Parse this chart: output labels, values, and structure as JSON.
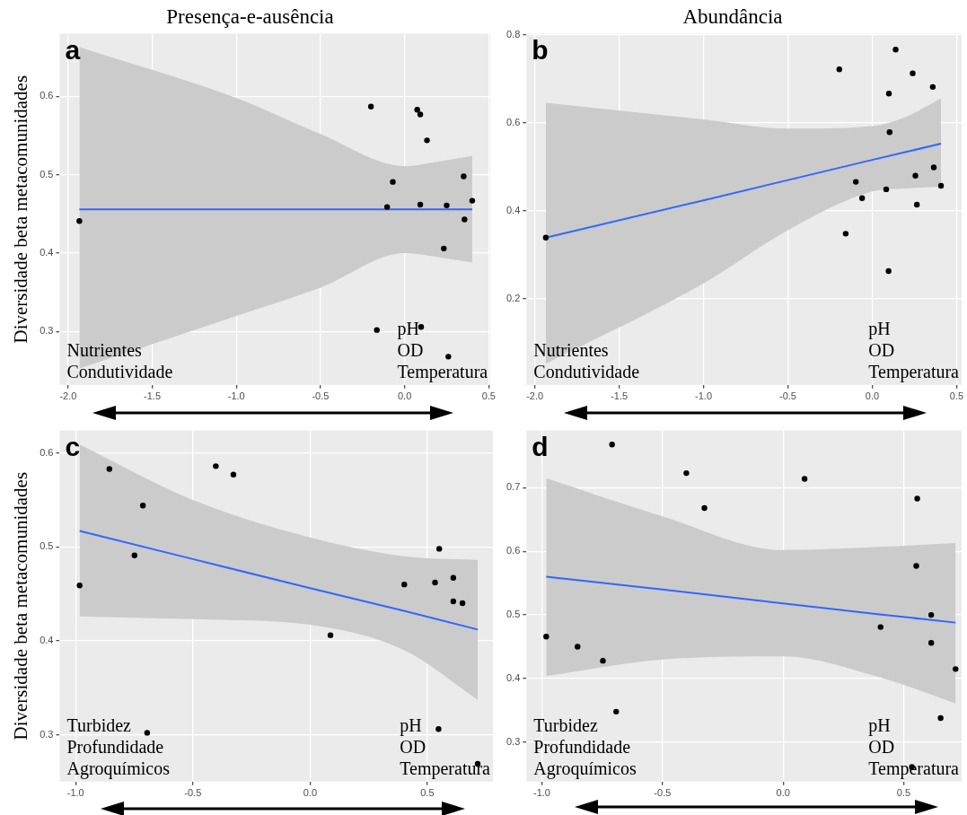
{
  "chart_data": [
    {
      "type": "scatter",
      "title": "Presença-e-ausência",
      "ylabel": "Diversidade beta metacomunidades",
      "annotations": [
        "a",
        "Nutrientes\nCondutividade",
        "pH\nOD\nTemperatura"
      ],
      "xlim": [
        -2.05,
        0.51
      ],
      "ylim": [
        0.232,
        0.68
      ],
      "xticks": [
        {
          "value": -2,
          "label": "-2.0"
        },
        -1.5,
        {
          "value": -1,
          "label": "-1.0"
        },
        -0.5,
        {
          "value": 0,
          "label": "0.0"
        },
        0.5
      ],
      "yticks": [
        0.3,
        0.4,
        0.5,
        0.6
      ],
      "grid": true,
      "series": [
        {
          "marker": "circle",
          "color": "#000000",
          "x": [
            -1.933,
            -0.2,
            0.075,
            0.093,
            0.133,
            -0.07,
            -0.104,
            0.093,
            0.25,
            0.351,
            0.402,
            0.356,
            0.233,
            -0.165,
            0.098,
            0.26
          ],
          "values": [
            0.441,
            0.587,
            0.583,
            0.577,
            0.544,
            0.491,
            0.459,
            0.462,
            0.461,
            0.498,
            0.467,
            0.443,
            0.406,
            0.302,
            0.306,
            0.268
          ]
        },
        {
          "type": "line",
          "marker": "none",
          "color": "#3366ff",
          "x": [
            -1.933,
            -1,
            -0.5,
            0,
            0.2,
            0.402
          ],
          "values": [
            0.456,
            0.456,
            0.456,
            0.456,
            0.456,
            0.456
          ],
          "lower": [
            0.253,
            0.32,
            0.356,
            0.4,
            0.395,
            0.388
          ],
          "upper": [
            0.663,
            0.598,
            0.552,
            0.511,
            0.517,
            0.524
          ]
        }
      ]
    },
    {
      "type": "scatter",
      "title": "Abundância",
      "annotations": [
        "b",
        "Nutrientes\nCondutividade",
        "pH\nOD\nTemperatura"
      ],
      "xlim": [
        -2.05,
        0.53
      ],
      "ylim": [
        0.004,
        0.803
      ],
      "xticks": [
        {
          "value": -2,
          "label": "-2.0"
        },
        -1.5,
        {
          "value": -1,
          "label": "-1.0"
        },
        -0.5,
        {
          "value": 0,
          "label": "0.0"
        },
        0.5
      ],
      "yticks": [
        0.2,
        0.4,
        0.6,
        0.8
      ],
      "grid": true,
      "series": [
        {
          "marker": "circle",
          "color": "#000000",
          "x": [
            -1.935,
            -0.195,
            0.139,
            0.24,
            0.099,
            0.359,
            0.103,
            0.365,
            0.256,
            -0.097,
            0.408,
            0.083,
            -0.06,
            0.265,
            -0.157,
            0.097
          ],
          "values": [
            0.339,
            0.722,
            0.767,
            0.713,
            0.667,
            0.682,
            0.579,
            0.499,
            0.48,
            0.466,
            0.457,
            0.449,
            0.429,
            0.414,
            0.348,
            0.263
          ]
        },
        {
          "type": "line",
          "marker": "none",
          "color": "#3366ff",
          "x": [
            -1.935,
            -1,
            -0.5,
            0,
            0.2,
            0.408
          ],
          "values": [
            0.339,
            0.424,
            0.47,
            0.516,
            0.534,
            0.553
          ],
          "lower": [
            0.052,
            0.235,
            0.356,
            0.444,
            0.451,
            0.455
          ],
          "upper": [
            0.646,
            0.608,
            0.587,
            0.593,
            0.614,
            0.656
          ]
        }
      ]
    },
    {
      "type": "scatter",
      "ylabel": "Diversidade beta metacomunidades",
      "annotations": [
        "c",
        "Turbidez\nProfundidade\nAgroquímicos",
        "pH\nOD\nTemperatura"
      ],
      "xlim": [
        -1.068,
        0.78
      ],
      "ylim": [
        0.25,
        0.624
      ],
      "xticks": [
        {
          "value": -1,
          "label": "-1.0"
        },
        -0.5,
        {
          "value": 0,
          "label": "0.0"
        },
        0.5
      ],
      "yticks": [
        0.3,
        0.4,
        0.5,
        0.6
      ],
      "grid": true,
      "series": [
        {
          "marker": "circle",
          "color": "#000000",
          "x": [
            -0.983,
            -0.856,
            -0.713,
            -0.749,
            -0.402,
            -0.327,
            0.087,
            0.402,
            0.533,
            0.551,
            0.611,
            0.611,
            0.65,
            -0.695,
            0.548,
            0.715
          ],
          "values": [
            0.459,
            0.583,
            0.544,
            0.491,
            0.586,
            0.577,
            0.406,
            0.46,
            0.462,
            0.498,
            0.467,
            0.442,
            0.44,
            0.302,
            0.306,
            0.269
          ]
        },
        {
          "type": "line",
          "marker": "none",
          "color": "#3366ff",
          "x": [
            -0.983,
            -0.5,
            0,
            0.4,
            0.715
          ],
          "values": [
            0.517,
            0.487,
            0.456,
            0.432,
            0.412
          ],
          "lower": [
            0.426,
            0.423,
            0.417,
            0.39,
            0.337
          ],
          "upper": [
            0.609,
            0.55,
            0.51,
            0.49,
            0.486
          ]
        }
      ]
    },
    {
      "type": "scatter",
      "annotations": [
        "d",
        "Turbidez\nProfundidade\nAgroquímicos",
        "pH\nOD\nTemperatura"
      ],
      "xlim": [
        -1.064,
        0.74
      ],
      "ylim": [
        0.238,
        0.79
      ],
      "xticks": [
        {
          "value": -1,
          "label": "-1.0"
        },
        -0.5,
        {
          "value": 0,
          "label": "0.0"
        },
        0.5
      ],
      "yticks": [
        0.3,
        0.4,
        0.5,
        0.6,
        0.7
      ],
      "grid": true,
      "series": [
        {
          "marker": "circle",
          "color": "#000000",
          "x": [
            -0.982,
            -0.852,
            -0.747,
            -0.709,
            -0.692,
            -0.401,
            -0.326,
            0.089,
            0.404,
            0.556,
            0.552,
            0.614,
            0.614,
            0.715,
            0.653,
            0.534
          ],
          "values": [
            0.466,
            0.45,
            0.428,
            0.768,
            0.348,
            0.723,
            0.668,
            0.714,
            0.481,
            0.683,
            0.577,
            0.5,
            0.456,
            0.415,
            0.338,
            0.261
          ]
        },
        {
          "type": "line",
          "marker": "none",
          "color": "#3366ff",
          "x": [
            -0.982,
            -0.5,
            0,
            0.4,
            0.715
          ],
          "values": [
            0.56,
            0.54,
            0.518,
            0.501,
            0.488
          ],
          "lower": [
            0.404,
            0.43,
            0.435,
            0.402,
            0.361
          ],
          "upper": [
            0.715,
            0.655,
            0.602,
            0.607,
            0.613
          ]
        }
      ]
    }
  ]
}
